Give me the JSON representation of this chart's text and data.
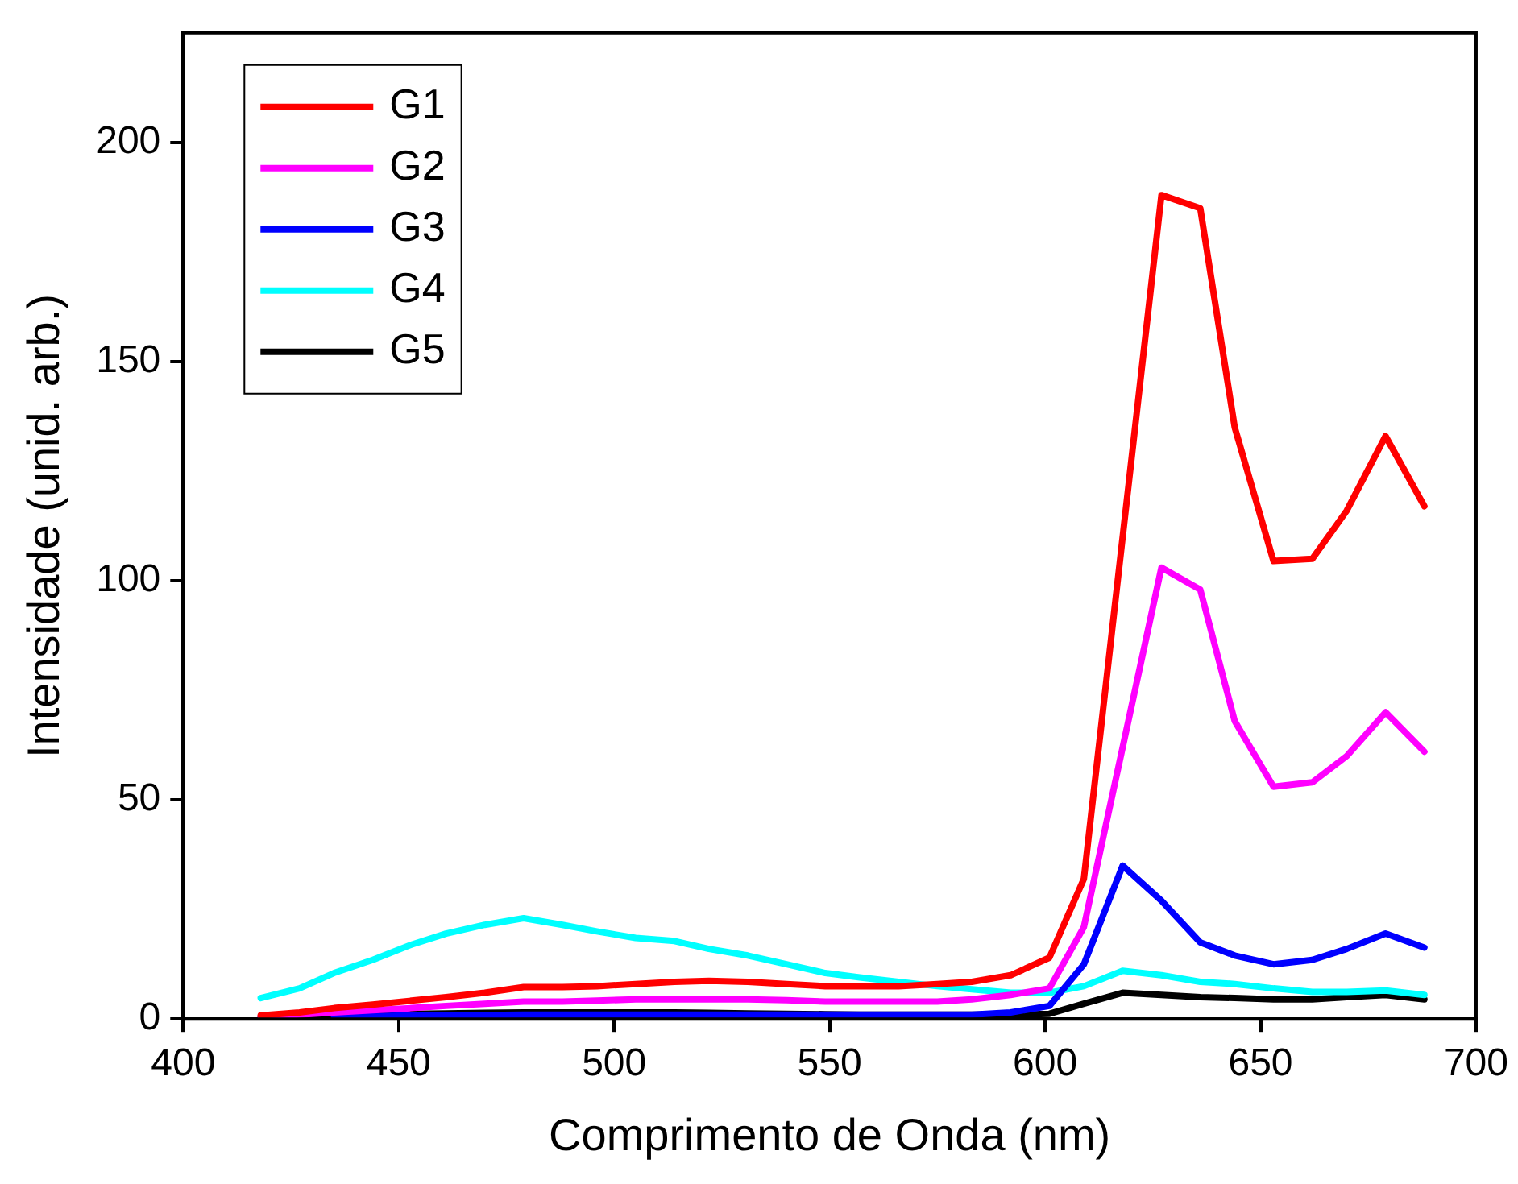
{
  "chart_data": {
    "type": "line",
    "xlabel": "Comprimento de Onda (nm)",
    "ylabel": "Intensidade (unid. arb.)",
    "x": [
      418,
      427,
      435,
      444,
      453,
      461,
      470,
      479,
      488,
      496,
      505,
      514,
      522,
      531,
      540,
      549,
      557,
      566,
      575,
      583,
      592,
      601,
      609,
      618,
      627,
      636,
      644,
      653,
      662,
      670,
      679,
      688
    ],
    "series": [
      {
        "name": "G1",
        "color": "#ff0000",
        "values": [
          0.8,
          1.5,
          2.5,
          3.3,
          4.2,
          5,
          6,
          7.3,
          7.3,
          7.5,
          8,
          8.5,
          8.7,
          8.5,
          8,
          7.5,
          7.5,
          7.5,
          8,
          8.5,
          10,
          14,
          32,
          110,
          188,
          185,
          135,
          104.5,
          105,
          116,
          133,
          117
        ]
      },
      {
        "name": "G2",
        "color": "#ff00ff",
        "values": [
          0.5,
          1,
          1.5,
          2,
          2.5,
          3,
          3.5,
          4,
          4,
          4.2,
          4.5,
          4.5,
          4.5,
          4.5,
          4.3,
          4,
          4,
          4,
          4,
          4.5,
          5.5,
          7,
          21,
          62,
          103,
          98,
          68,
          53,
          54,
          60,
          70,
          61
        ]
      },
      {
        "name": "G3",
        "color": "#0000ff",
        "values": [
          null,
          null,
          0.6,
          0.7,
          0.8,
          0.8,
          0.9,
          1,
          1,
          1,
          1,
          1,
          1,
          1,
          1,
          1,
          1,
          1,
          1,
          1,
          1.5,
          3,
          12.5,
          35,
          27,
          17.5,
          14.5,
          12.5,
          13.5,
          16,
          19.5,
          16.3
        ]
      },
      {
        "name": "G4",
        "color": "#00ffff",
        "values": [
          4.8,
          7,
          10.5,
          13.5,
          17,
          19.5,
          21.5,
          23,
          21.5,
          20,
          18.5,
          17.8,
          16,
          14.5,
          12.5,
          10.5,
          9.5,
          8.5,
          7.5,
          6.8,
          6,
          6,
          7.5,
          11,
          10,
          8.5,
          8,
          7,
          6.2,
          6.2,
          6.5,
          5.5
        ]
      },
      {
        "name": "G5",
        "color": "#000000",
        "values": [
          0.5,
          0.7,
          0.9,
          1.1,
          1.2,
          1.3,
          1.4,
          1.5,
          1.5,
          1.5,
          1.5,
          1.5,
          1.4,
          1.3,
          1.2,
          1.1,
          1,
          1,
          1,
          1,
          1,
          1.2,
          3.5,
          6,
          5.5,
          5,
          4.8,
          4.5,
          4.5,
          5,
          5.5,
          4.5
        ]
      }
    ],
    "xlim": [
      400,
      700
    ],
    "xticks": [
      400,
      450,
      500,
      550,
      600,
      650,
      700
    ],
    "ylim": [
      0,
      225
    ],
    "yticks": [
      0,
      50,
      100,
      150,
      200
    ],
    "grid": false,
    "legend": "top left",
    "marker": "none",
    "line_style": "solid"
  }
}
